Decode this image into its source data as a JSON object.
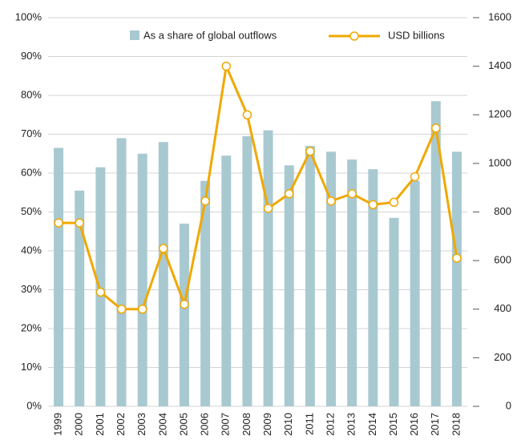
{
  "chart_data": {
    "type": "bar_line",
    "categories": [
      "1999",
      "2000",
      "2001",
      "2002",
      "2003",
      "2004",
      "2005",
      "2006",
      "2007",
      "2008",
      "2009",
      "2010",
      "2011",
      "2012",
      "2013",
      "2014",
      "2015",
      "2016",
      "2017",
      "2018"
    ],
    "series": [
      {
        "name": "As a share of global outflows",
        "color": "#a9c9d1",
        "type": "bar",
        "axis": "y",
        "values": [
          66.5,
          55.5,
          61.5,
          69,
          65,
          68,
          47,
          58,
          64.5,
          69.5,
          71,
          62,
          67,
          65.5,
          63.5,
          61,
          48.5,
          58,
          78.5,
          65.5
        ]
      },
      {
        "name": "USD billions",
        "color": "#f0a800",
        "type": "line",
        "axis": "y2",
        "values": [
          755,
          755,
          470,
          400,
          400,
          650,
          420,
          845,
          1400,
          1200,
          815,
          875,
          1050,
          845,
          875,
          830,
          840,
          945,
          1145,
          610
        ]
      }
    ],
    "ylim": [
      0,
      100
    ],
    "yticks": [
      {
        "value": 0,
        "label": "0%"
      },
      {
        "value": 10,
        "label": "10%"
      },
      {
        "value": 20,
        "label": "20%"
      },
      {
        "value": 30,
        "label": "30%"
      },
      {
        "value": 40,
        "label": "40%"
      },
      {
        "value": 50,
        "label": "50%"
      },
      {
        "value": 60,
        "label": "60%"
      },
      {
        "value": 70,
        "label": "70%"
      },
      {
        "value": 80,
        "label": "80%"
      },
      {
        "value": 90,
        "label": "90%"
      },
      {
        "value": 100,
        "label": "100%"
      }
    ],
    "y2lim": [
      0,
      1600
    ],
    "y2ticks": [
      0,
      200,
      400,
      600,
      800,
      1000,
      1200,
      1400,
      1600
    ],
    "grid": true
  }
}
